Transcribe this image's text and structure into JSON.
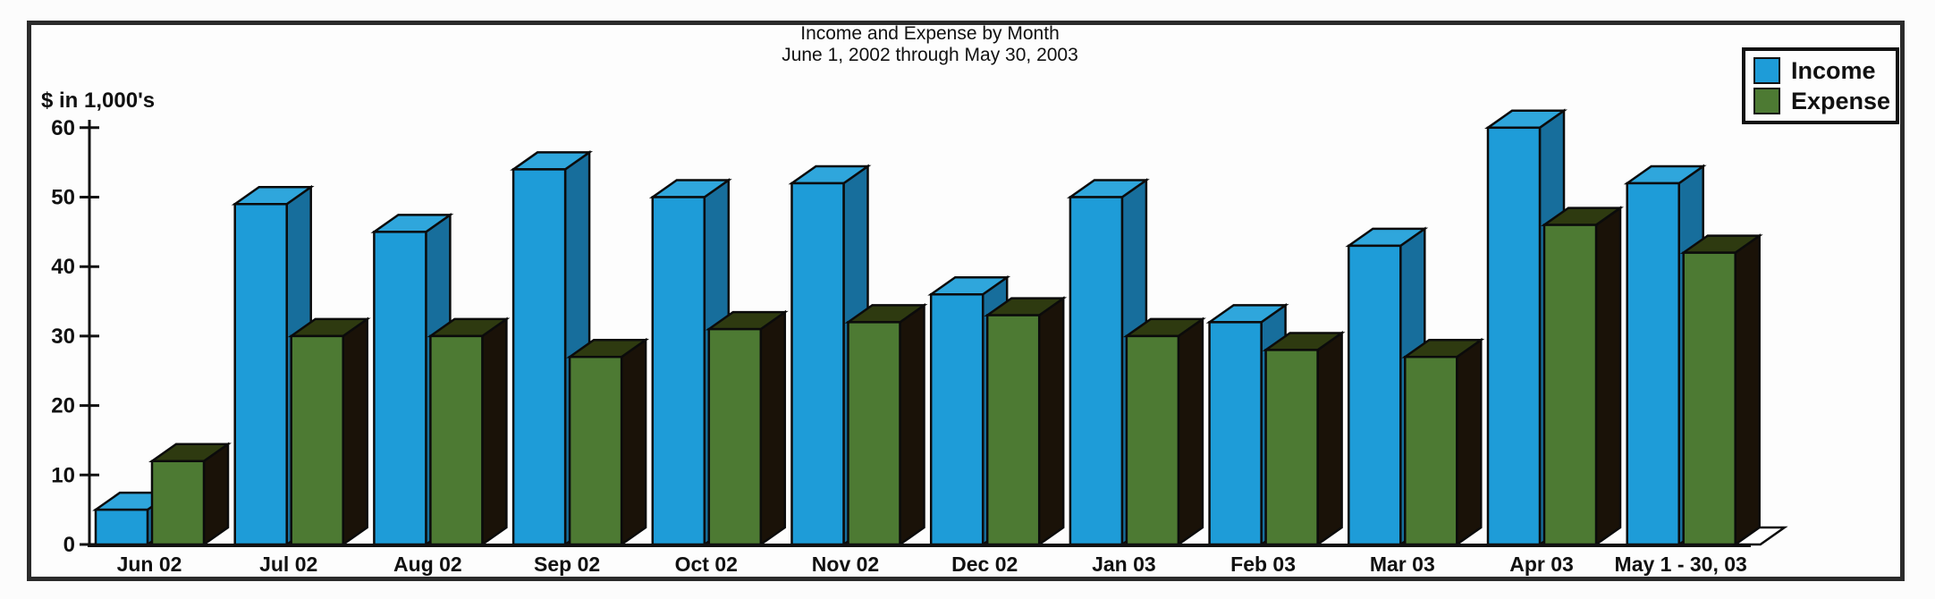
{
  "chart_data": {
    "type": "bar",
    "bar_style": "3d",
    "title": "Income and Expense by Month",
    "subtitle": "June 1, 2002 through May 30, 2003",
    "y_axis_label": "$ in 1,000's",
    "ylim": [
      0,
      60
    ],
    "y_tick_step": 10,
    "y_tick_labels": [
      "0",
      "10",
      "20",
      "30",
      "40",
      "50",
      "60"
    ],
    "grid": false,
    "categories": [
      "Jun 02",
      "Jul 02",
      "Aug 02",
      "Sep 02",
      "Oct 02",
      "Nov 02",
      "Dec 02",
      "Jan 03",
      "Feb 03",
      "Mar 03",
      "Apr 03",
      "May 1 - 30, 03"
    ],
    "series": [
      {
        "name": "Income",
        "color": "#1e9cd8",
        "top_color": "#2fa6dc",
        "side_color": "#176e9c",
        "values": [
          5,
          49,
          45,
          54,
          50,
          52,
          36,
          50,
          32,
          43,
          60,
          52
        ]
      },
      {
        "name": "Expense",
        "color": "#4d7a33",
        "top_color": "#2e3a10",
        "side_color": "#1a1208",
        "values": [
          12,
          30,
          30,
          27,
          31,
          32,
          33,
          30,
          28,
          27,
          46,
          42
        ]
      }
    ],
    "legend": {
      "position": "top-right",
      "items": [
        {
          "label": "Income",
          "color": "#1e9cd8"
        },
        {
          "label": "Expense",
          "color": "#4d7a33"
        }
      ]
    },
    "axis_color": "#111111",
    "outline_color": "#0b0b0b"
  }
}
